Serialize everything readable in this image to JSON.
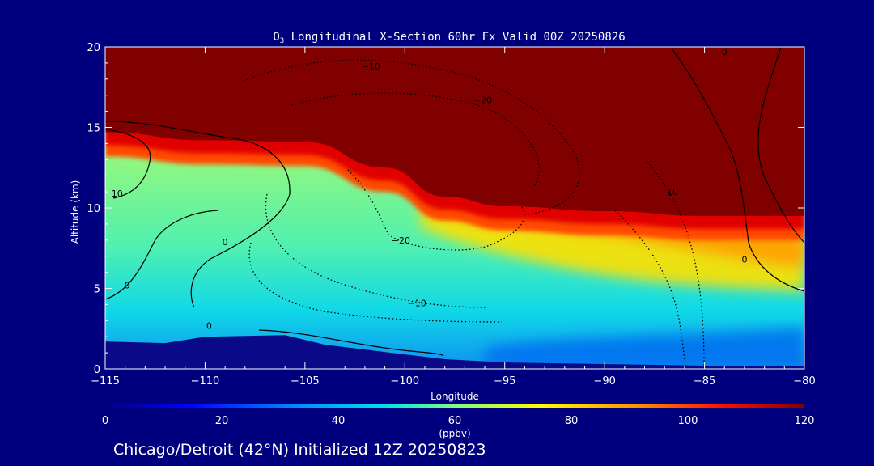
{
  "chart_data": {
    "type": "heatmap",
    "title_prefix": "O",
    "title_subscript": "3",
    "title_rest": " Longitudinal X-Section 60hr  Fx Valid 00Z 20250826",
    "xlabel": "Longitude",
    "ylabel": "Altitude (km)",
    "xlim": [
      -115,
      -80
    ],
    "ylim": [
      0,
      20
    ],
    "x_ticks": [
      -115,
      -110,
      -105,
      -100,
      -95,
      -90,
      -85,
      -80
    ],
    "x_tick_labels": [
      "−115",
      "−110",
      "−105",
      "−100",
      "−95",
      "−90",
      "−85",
      "−80"
    ],
    "y_ticks": [
      0,
      5,
      10,
      15,
      20
    ],
    "y_tick_labels": [
      "0",
      "5",
      "10",
      "15",
      "20"
    ],
    "colorbar": {
      "min": 0,
      "max": 120,
      "units": "(ppbv)",
      "ticks": [
        0,
        20,
        40,
        60,
        80,
        100,
        120
      ],
      "tick_labels": [
        "0",
        "20",
        "40",
        "60",
        "80",
        "100",
        "120"
      ]
    },
    "subtitle": "Chicago/Detroit (42°N) Initialized 12Z 20250823",
    "field_description": "O3 concentration (ppbv) vs longitude and altitude",
    "tropopause_lon": [
      -115,
      -110,
      -105,
      -101,
      -98,
      -95,
      -90,
      -85,
      -80
    ],
    "tropopause_alt": [
      14.5,
      14.0,
      13.9,
      12.3,
      10.5,
      9.9,
      9.6,
      9.3,
      9.3
    ],
    "terrain_lon": [
      -115,
      -112,
      -110,
      -106,
      -104,
      -102,
      -100,
      -98,
      -95,
      -90,
      -85,
      -80
    ],
    "terrain_alt": [
      1.7,
      1.6,
      2.0,
      2.1,
      1.5,
      1.2,
      0.9,
      0.6,
      0.4,
      0.3,
      0.2,
      0.15
    ],
    "contour_labels": [
      {
        "text": "−10",
        "lon": -101.7,
        "alt": 18.6
      },
      {
        "text": "−20",
        "lon": -96.1,
        "alt": 16.5
      },
      {
        "text": "10",
        "lon": -114.4,
        "alt": 10.7
      },
      {
        "text": "0",
        "lon": -109.0,
        "alt": 7.7
      },
      {
        "text": "−20",
        "lon": -100.2,
        "alt": 7.8
      },
      {
        "text": "0",
        "lon": -113.9,
        "alt": 5.0
      },
      {
        "text": "−10",
        "lon": -99.4,
        "alt": 3.9
      },
      {
        "text": "0",
        "lon": -109.8,
        "alt": 2.5
      },
      {
        "text": "10",
        "lon": -86.6,
        "alt": 10.8
      },
      {
        "text": "0",
        "lon": -83.0,
        "alt": 6.6
      },
      {
        "text": "0",
        "lon": -84.0,
        "alt": 19.5
      }
    ]
  }
}
